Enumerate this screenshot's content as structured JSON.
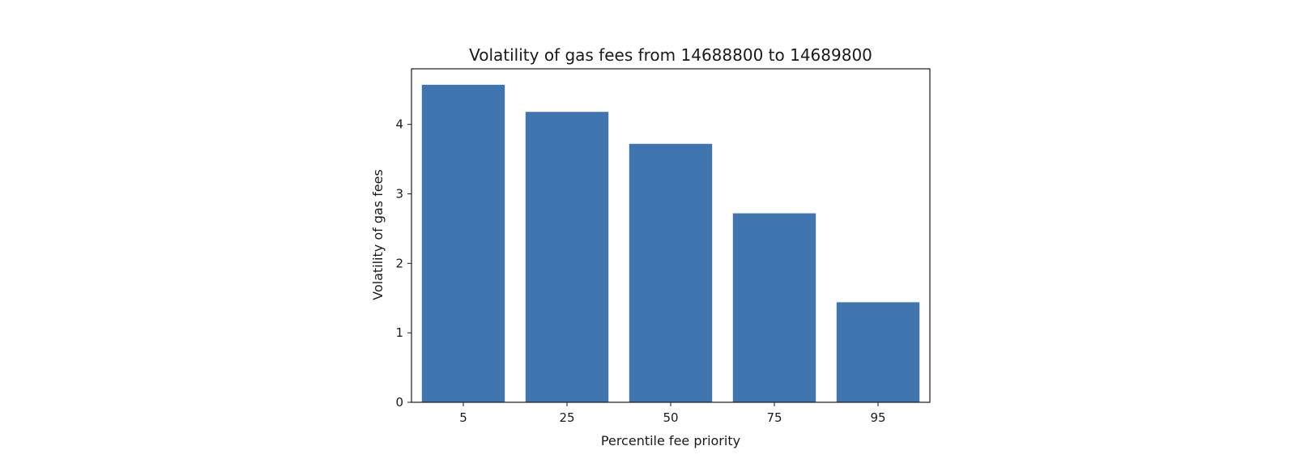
{
  "chart_data": {
    "type": "bar",
    "title": "Volatility of gas fees from 14688800 to 14689800",
    "xlabel": "Percentile fee priority",
    "ylabel": "Volatility of gas fees",
    "categories": [
      "5",
      "25",
      "50",
      "75",
      "95"
    ],
    "values": [
      4.57,
      4.18,
      3.72,
      2.72,
      1.44
    ],
    "ylim": [
      0,
      4.8
    ],
    "yticks": [
      "0",
      "1",
      "2",
      "3",
      "4"
    ],
    "grid": false,
    "bar_color": "#3f74ae"
  }
}
